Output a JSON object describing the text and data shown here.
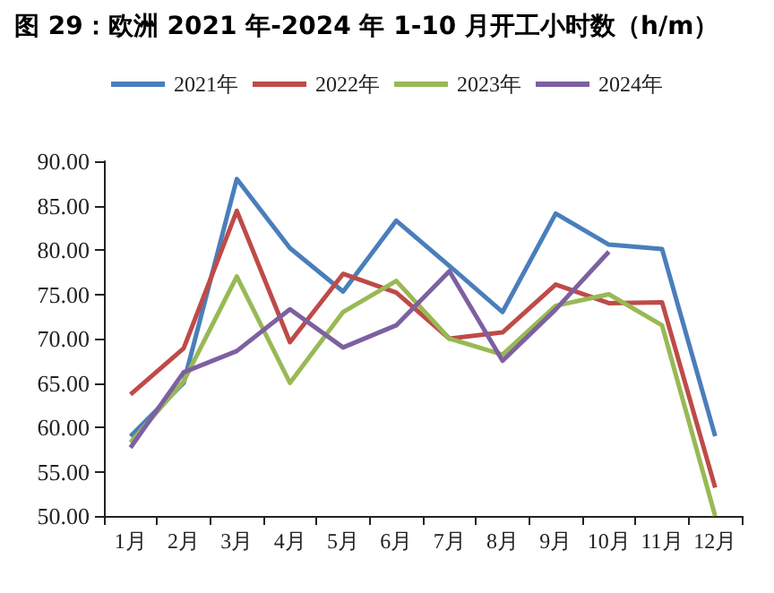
{
  "chart_data": {
    "type": "line",
    "title": "图 29：欧洲 2021 年-2024 年 1-10 月开工小时数（h/m）",
    "categories": [
      "1月",
      "2月",
      "3月",
      "4月",
      "5月",
      "6月",
      "7月",
      "8月",
      "9月",
      "10月",
      "11月",
      "12月"
    ],
    "series": [
      {
        "name": "2021年",
        "color": "#4a7ebb",
        "values": [
          59,
          65,
          88,
          80.2,
          75.3,
          83.3,
          78.2,
          73,
          84.1,
          80.6,
          80.1,
          59
        ]
      },
      {
        "name": "2022年",
        "color": "#be4b48",
        "values": [
          63.7,
          68.9,
          84.4,
          69.6,
          77.3,
          75.2,
          70,
          70.7,
          76.1,
          74,
          74.1,
          53.2
        ]
      },
      {
        "name": "2023年",
        "color": "#98b954",
        "values": [
          58.3,
          65.2,
          77,
          65,
          73,
          76.5,
          70,
          68.2,
          73.7,
          75,
          71.5,
          50
        ]
      },
      {
        "name": "2024年",
        "color": "#7d60a0",
        "values": [
          57.7,
          66.2,
          68.6,
          73.3,
          69,
          71.5,
          77.6,
          67.5,
          73.3,
          79.8,
          null,
          null
        ]
      }
    ],
    "ylim": [
      50,
      90
    ],
    "yticks": [
      {
        "value": 50,
        "label": "50.00"
      },
      {
        "value": 55,
        "label": "55.00"
      },
      {
        "value": 60,
        "label": "60.00"
      },
      {
        "value": 65,
        "label": "65.00"
      },
      {
        "value": 70,
        "label": "70.00"
      },
      {
        "value": 75,
        "label": "75.00"
      },
      {
        "value": 80,
        "label": "80.00"
      },
      {
        "value": 85,
        "label": "85.00"
      },
      {
        "value": 90,
        "label": "90.00"
      }
    ],
    "grid": false,
    "legend": "top",
    "marker": "none",
    "line_style": "solid"
  }
}
